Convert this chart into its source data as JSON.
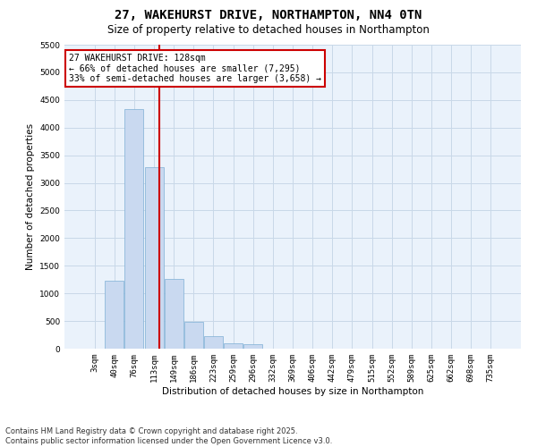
{
  "title_line1": "27, WAKEHURST DRIVE, NORTHAMPTON, NN4 0TN",
  "title_line2": "Size of property relative to detached houses in Northampton",
  "xlabel": "Distribution of detached houses by size in Northampton",
  "ylabel": "Number of detached properties",
  "categories": [
    "3sqm",
    "40sqm",
    "76sqm",
    "113sqm",
    "149sqm",
    "186sqm",
    "223sqm",
    "259sqm",
    "296sqm",
    "332sqm",
    "369sqm",
    "406sqm",
    "442sqm",
    "479sqm",
    "515sqm",
    "552sqm",
    "589sqm",
    "625sqm",
    "662sqm",
    "698sqm",
    "735sqm"
  ],
  "values": [
    0,
    1230,
    4330,
    3280,
    1260,
    490,
    220,
    100,
    75,
    0,
    0,
    0,
    0,
    0,
    0,
    0,
    0,
    0,
    0,
    0,
    0
  ],
  "bar_color": "#c9d9f0",
  "bar_edge_color": "#7eafd4",
  "vline_x_index": 3.27,
  "vline_color": "#cc0000",
  "annotation_text": "27 WAKEHURST DRIVE: 128sqm\n← 66% of detached houses are smaller (7,295)\n33% of semi-detached houses are larger (3,658) →",
  "annotation_box_color": "#cc0000",
  "ylim": [
    0,
    5500
  ],
  "yticks": [
    0,
    500,
    1000,
    1500,
    2000,
    2500,
    3000,
    3500,
    4000,
    4500,
    5000,
    5500
  ],
  "grid_color": "#c8d8e8",
  "bg_color": "#eaf2fb",
  "footer_line1": "Contains HM Land Registry data © Crown copyright and database right 2025.",
  "footer_line2": "Contains public sector information licensed under the Open Government Licence v3.0.",
  "title_fontsize": 10,
  "subtitle_fontsize": 8.5,
  "footer_fontsize": 6,
  "tick_fontsize": 6.5,
  "label_fontsize": 7.5,
  "annotation_fontsize": 7
}
